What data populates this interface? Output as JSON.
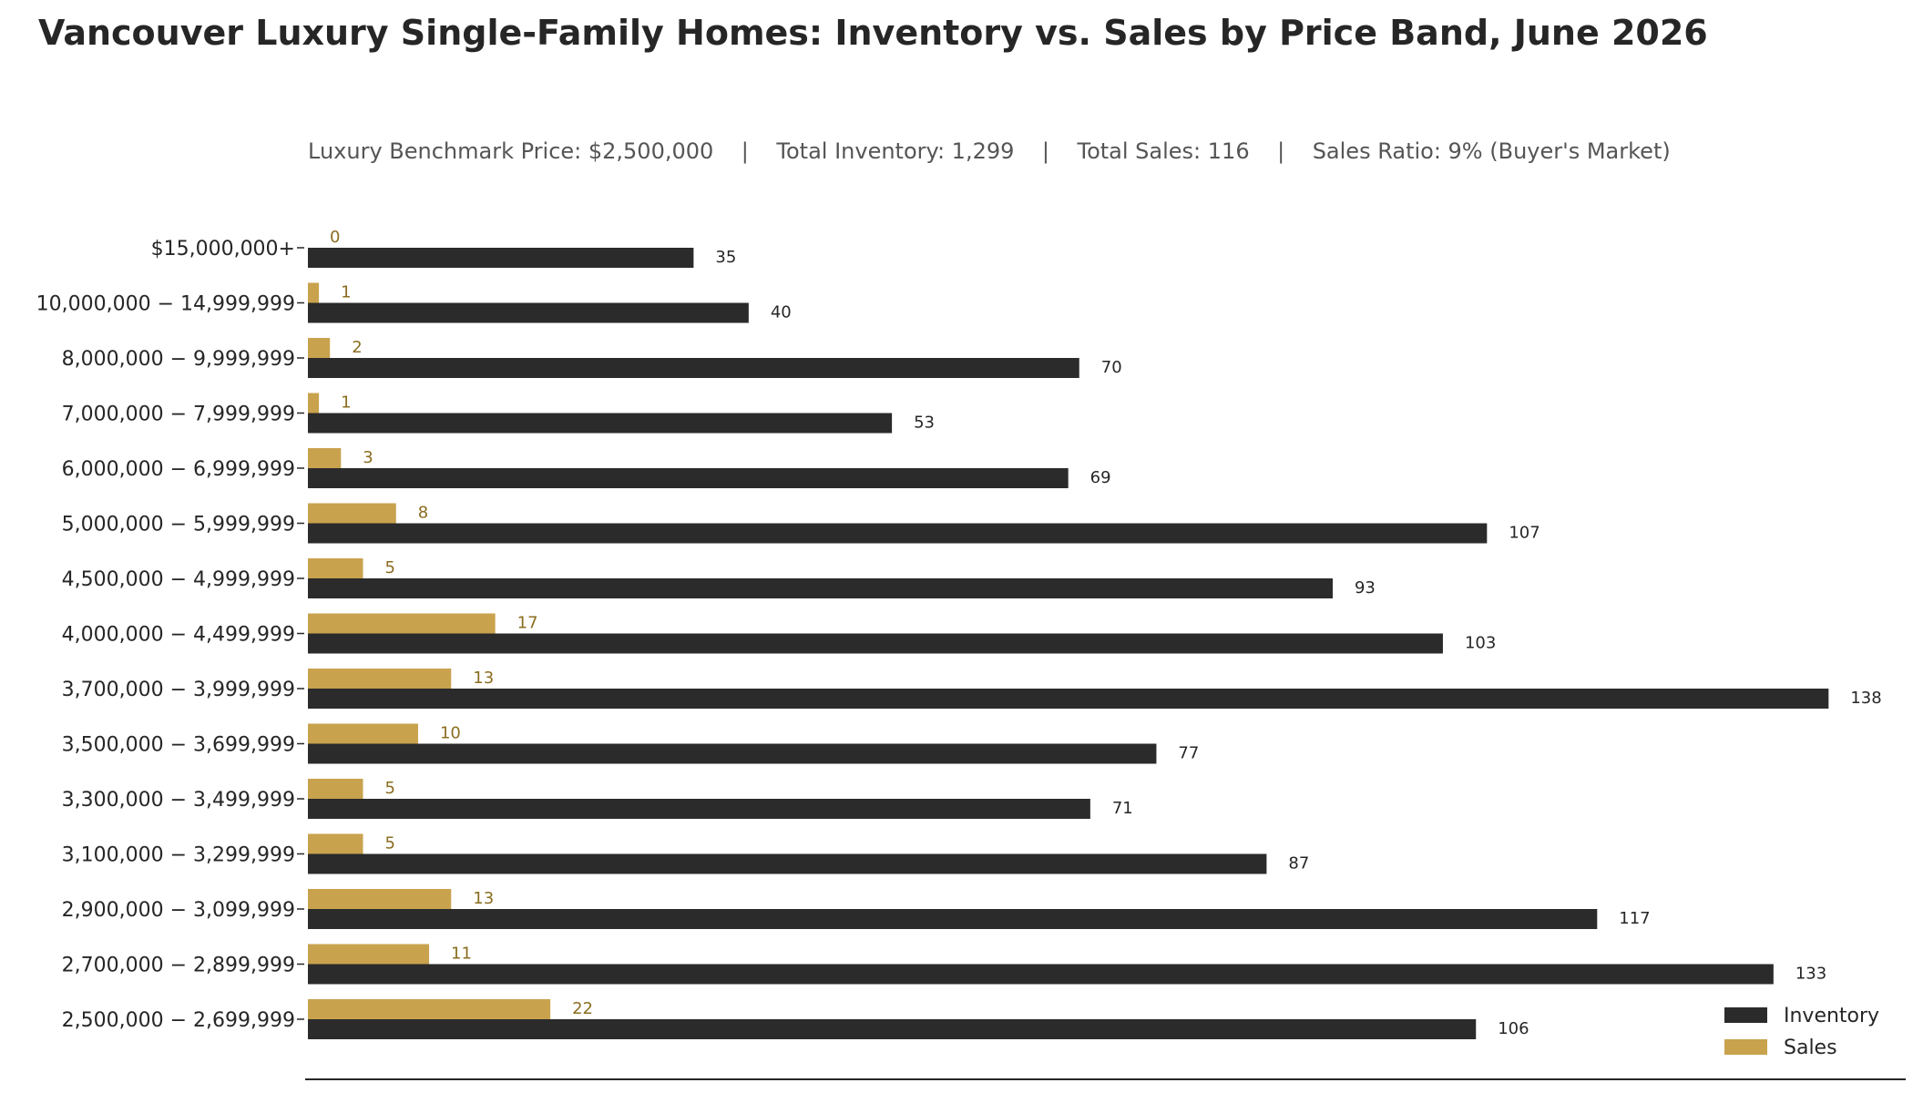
{
  "chart_data": {
    "type": "bar",
    "orientation": "horizontal",
    "title": "Vancouver Luxury Single-Family Homes: Inventory vs. Sales by Price Band, June 2026",
    "subtitle_items": [
      "Luxury Benchmark Price: $2,500,000",
      "Total Inventory: 1,299",
      "Total Sales: 116",
      "Sales Ratio: 9% (Buyer's Market)"
    ],
    "subtitle_separator": "|",
    "categories": [
      "$15,000,000+",
      "10,000,000 − 14,999,999",
      "8,000,000 − 9,999,999",
      "7,000,000 − 7,999,999",
      "6,000,000 − 6,999,999",
      "5,000,000 − 5,999,999",
      "4,500,000 − 4,999,999",
      "4,000,000 − 4,499,999",
      "3,700,000 − 3,999,999",
      "3,500,000 − 3,699,999",
      "3,300,000 − 3,499,999",
      "3,100,000 − 3,299,999",
      "2,900,000 − 3,099,999",
      "2,700,000 − 2,899,999",
      "2,500,000 − 2,699,999"
    ],
    "series": [
      {
        "name": "Inventory",
        "color": "#2b2b2b",
        "values": [
          35,
          40,
          70,
          53,
          69,
          107,
          93,
          103,
          138,
          77,
          71,
          87,
          117,
          133,
          106
        ]
      },
      {
        "name": "Sales",
        "color": "#c9a24e",
        "values": [
          0,
          1,
          2,
          1,
          3,
          8,
          5,
          17,
          13,
          10,
          5,
          5,
          13,
          11,
          22
        ]
      }
    ],
    "xlim": [
      0,
      145
    ],
    "legend_position": "bottom-right",
    "grid": false
  }
}
